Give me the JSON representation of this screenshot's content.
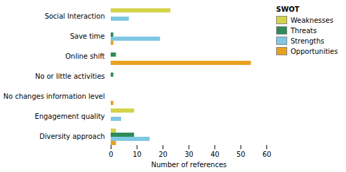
{
  "chart_data": {
    "type": "bar",
    "orientation": "horizontal",
    "categories": [
      "Social Interaction",
      "Save time",
      "Online shift",
      "No or little activities",
      "No changes information level",
      "Engagement quality",
      "Diversity approach"
    ],
    "series": [
      {
        "name": "Weaknesses",
        "color": "#D4D44A",
        "values": [
          23,
          0,
          0,
          0,
          0,
          9,
          2
        ]
      },
      {
        "name": "Threats",
        "color": "#2E8B57",
        "values": [
          0,
          1,
          2,
          1,
          0,
          0,
          9
        ]
      },
      {
        "name": "Strengths",
        "color": "#7EC8E3",
        "values": [
          7,
          19,
          0,
          0,
          0,
          4,
          15
        ]
      },
      {
        "name": "Opportunities",
        "color": "#E8A020",
        "values": [
          0,
          1,
          54,
          0,
          1,
          0,
          2
        ]
      }
    ],
    "xlabel": "Number of references",
    "xlim": [
      0,
      60
    ],
    "xticks": [
      0,
      10,
      20,
      30,
      40,
      50,
      60
    ],
    "legend_title": "SWOT",
    "legend": "right",
    "grid": false
  }
}
